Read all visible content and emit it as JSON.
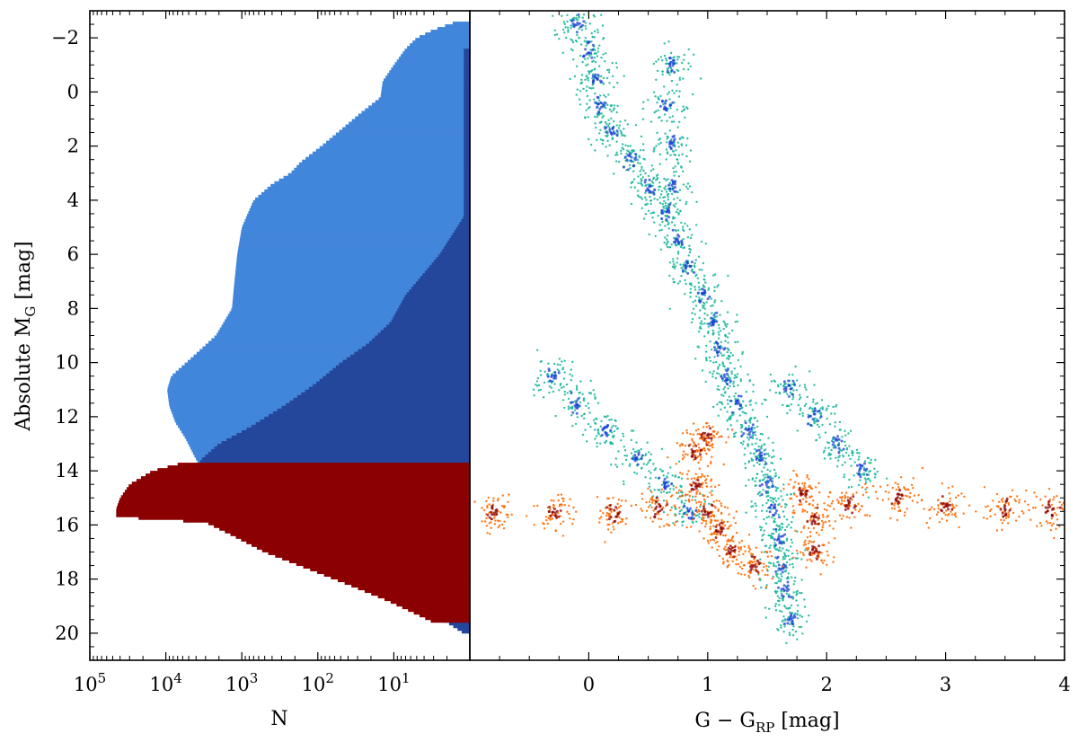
{
  "chart_data": [
    {
      "panel": "left",
      "type": "histogram",
      "orientation": "horizontal",
      "xscale": "log",
      "xlim_reversed": [
        100000,
        1
      ],
      "ylim_reversed": [
        -3,
        21
      ],
      "xlabel": "N",
      "ylabel": "Absolute M",
      "ylabel_sub": "G",
      "ylabel_unit": " [mag]",
      "xticks": [
        {
          "value": 100000,
          "base": "10",
          "exp": "5"
        },
        {
          "value": 10000,
          "base": "10",
          "exp": "4"
        },
        {
          "value": 1000,
          "base": "10",
          "exp": "3"
        },
        {
          "value": 100,
          "base": "10",
          "exp": "2"
        },
        {
          "value": 10,
          "base": "10",
          "exp": "1"
        }
      ],
      "yticks": [
        "−2",
        "0",
        "2",
        "4",
        "6",
        "8",
        "10",
        "12",
        "14",
        "16",
        "18",
        "20"
      ],
      "ytick_values": [
        -2,
        0,
        2,
        4,
        6,
        8,
        10,
        12,
        14,
        16,
        18,
        20
      ],
      "series": [
        {
          "color": "#4186da",
          "points": [
            [
              -2.6,
              1.5
            ],
            [
              -2.3,
              3
            ],
            [
              -2.0,
              5
            ],
            [
              -1.6,
              7
            ],
            [
              -1.0,
              10
            ],
            [
              -0.4,
              14
            ],
            [
              0.2,
              15
            ],
            [
              0.8,
              28
            ],
            [
              1.4,
              50
            ],
            [
              2.0,
              90
            ],
            [
              2.6,
              170
            ],
            [
              3.0,
              230
            ],
            [
              3.4,
              400
            ],
            [
              4.0,
              700
            ],
            [
              5.0,
              1000
            ],
            [
              6.0,
              1150
            ],
            [
              7.0,
              1250
            ],
            [
              8.0,
              1350
            ],
            [
              9.0,
              2200
            ],
            [
              9.8,
              4500
            ],
            [
              10.5,
              8500
            ],
            [
              11.0,
              9600
            ],
            [
              11.6,
              9000
            ],
            [
              12.2,
              7500
            ],
            [
              12.8,
              5500
            ],
            [
              13.4,
              4300
            ],
            [
              13.8,
              3600
            ]
          ]
        },
        {
          "color": "#24469b",
          "points": [
            [
              -1.6,
              1.2
            ],
            [
              4.6,
              1.2
            ],
            [
              6.0,
              2.5
            ],
            [
              7.5,
              7
            ],
            [
              8.5,
              11
            ],
            [
              9.3,
              22
            ],
            [
              10.0,
              50
            ],
            [
              10.8,
              110
            ],
            [
              11.6,
              280
            ],
            [
              12.4,
              800
            ],
            [
              13.0,
              2000
            ],
            [
              13.6,
              3500
            ],
            [
              14.0,
              3800
            ],
            [
              14.6,
              4100
            ],
            [
              15.0,
              4300
            ],
            [
              15.4,
              4000
            ],
            [
              15.8,
              2500
            ],
            [
              16.4,
              700
            ],
            [
              17.0,
              180
            ],
            [
              17.6,
              60
            ],
            [
              18.2,
              25
            ],
            [
              18.8,
              10
            ],
            [
              19.2,
              5
            ],
            [
              19.6,
              2
            ],
            [
              20.0,
              1.2
            ]
          ]
        },
        {
          "color": "#8b0000",
          "points": [
            [
              13.7,
              6000
            ],
            [
              14.0,
              15000
            ],
            [
              14.5,
              30000
            ],
            [
              15.0,
              40000
            ],
            [
              15.4,
              45000
            ],
            [
              15.7,
              45000
            ],
            [
              15.9,
              3000
            ],
            [
              16.4,
              1300
            ],
            [
              17.0,
              500
            ],
            [
              17.6,
              140
            ],
            [
              18.2,
              40
            ],
            [
              18.8,
              12
            ],
            [
              19.3,
              5
            ],
            [
              19.6,
              3
            ]
          ]
        }
      ]
    },
    {
      "panel": "right",
      "type": "scatter",
      "xlim": [
        -1.0,
        4.0
      ],
      "ylim_reversed": [
        -3,
        21
      ],
      "xlabel": "G − G",
      "xlabel_sub": "RP",
      "xlabel_unit": " [mag]",
      "xticks": [
        "0",
        "1",
        "2",
        "3",
        "4"
      ],
      "xtick_values": [
        0,
        1,
        2,
        3,
        4
      ],
      "series": [
        {
          "color": "#1ab79b",
          "core_color": "#1a3fd8",
          "points": [
            [
              -0.1,
              -2.5
            ],
            [
              0.0,
              -1.5
            ],
            [
              0.05,
              -0.5
            ],
            [
              0.1,
              0.5
            ],
            [
              0.2,
              1.5
            ],
            [
              0.35,
              2.5
            ],
            [
              0.5,
              3.5
            ],
            [
              0.65,
              4.5
            ],
            [
              0.75,
              5.5
            ],
            [
              0.85,
              6.5
            ],
            [
              0.95,
              7.5
            ],
            [
              1.05,
              8.5
            ],
            [
              1.1,
              9.5
            ],
            [
              1.15,
              10.5
            ],
            [
              1.25,
              11.5
            ],
            [
              1.35,
              12.5
            ],
            [
              1.45,
              13.5
            ],
            [
              1.5,
              14.5
            ],
            [
              1.55,
              15.5
            ],
            [
              1.6,
              16.5
            ],
            [
              1.62,
              17.5
            ],
            [
              1.65,
              18.5
            ],
            [
              1.7,
              19.5
            ],
            [
              0.7,
              -1.0
            ],
            [
              0.65,
              0.5
            ],
            [
              0.7,
              2.0
            ],
            [
              0.7,
              3.5
            ],
            [
              -0.3,
              10.5
            ],
            [
              -0.1,
              11.5
            ],
            [
              0.15,
              12.5
            ],
            [
              0.4,
              13.5
            ],
            [
              0.65,
              14.5
            ],
            [
              0.85,
              15.5
            ],
            [
              1.7,
              11.0
            ],
            [
              1.9,
              12.0
            ],
            [
              2.1,
              13.0
            ],
            [
              2.3,
              14.0
            ]
          ]
        },
        {
          "color": "#ff6a00",
          "core_color": "#8b0000",
          "points": [
            [
              -0.8,
              15.6
            ],
            [
              -0.3,
              15.5
            ],
            [
              0.2,
              15.6
            ],
            [
              0.6,
              15.4
            ],
            [
              0.9,
              14.6
            ],
            [
              1.0,
              15.5
            ],
            [
              1.1,
              16.2
            ],
            [
              1.2,
              17.0
            ],
            [
              1.4,
              17.5
            ],
            [
              1.8,
              14.8
            ],
            [
              1.9,
              15.8
            ],
            [
              2.2,
              15.2
            ],
            [
              2.6,
              15.0
            ],
            [
              3.0,
              15.3
            ],
            [
              3.5,
              15.4
            ],
            [
              3.9,
              15.5
            ],
            [
              0.9,
              13.3
            ],
            [
              1.0,
              12.8
            ],
            [
              1.9,
              17.0
            ]
          ]
        }
      ]
    }
  ]
}
